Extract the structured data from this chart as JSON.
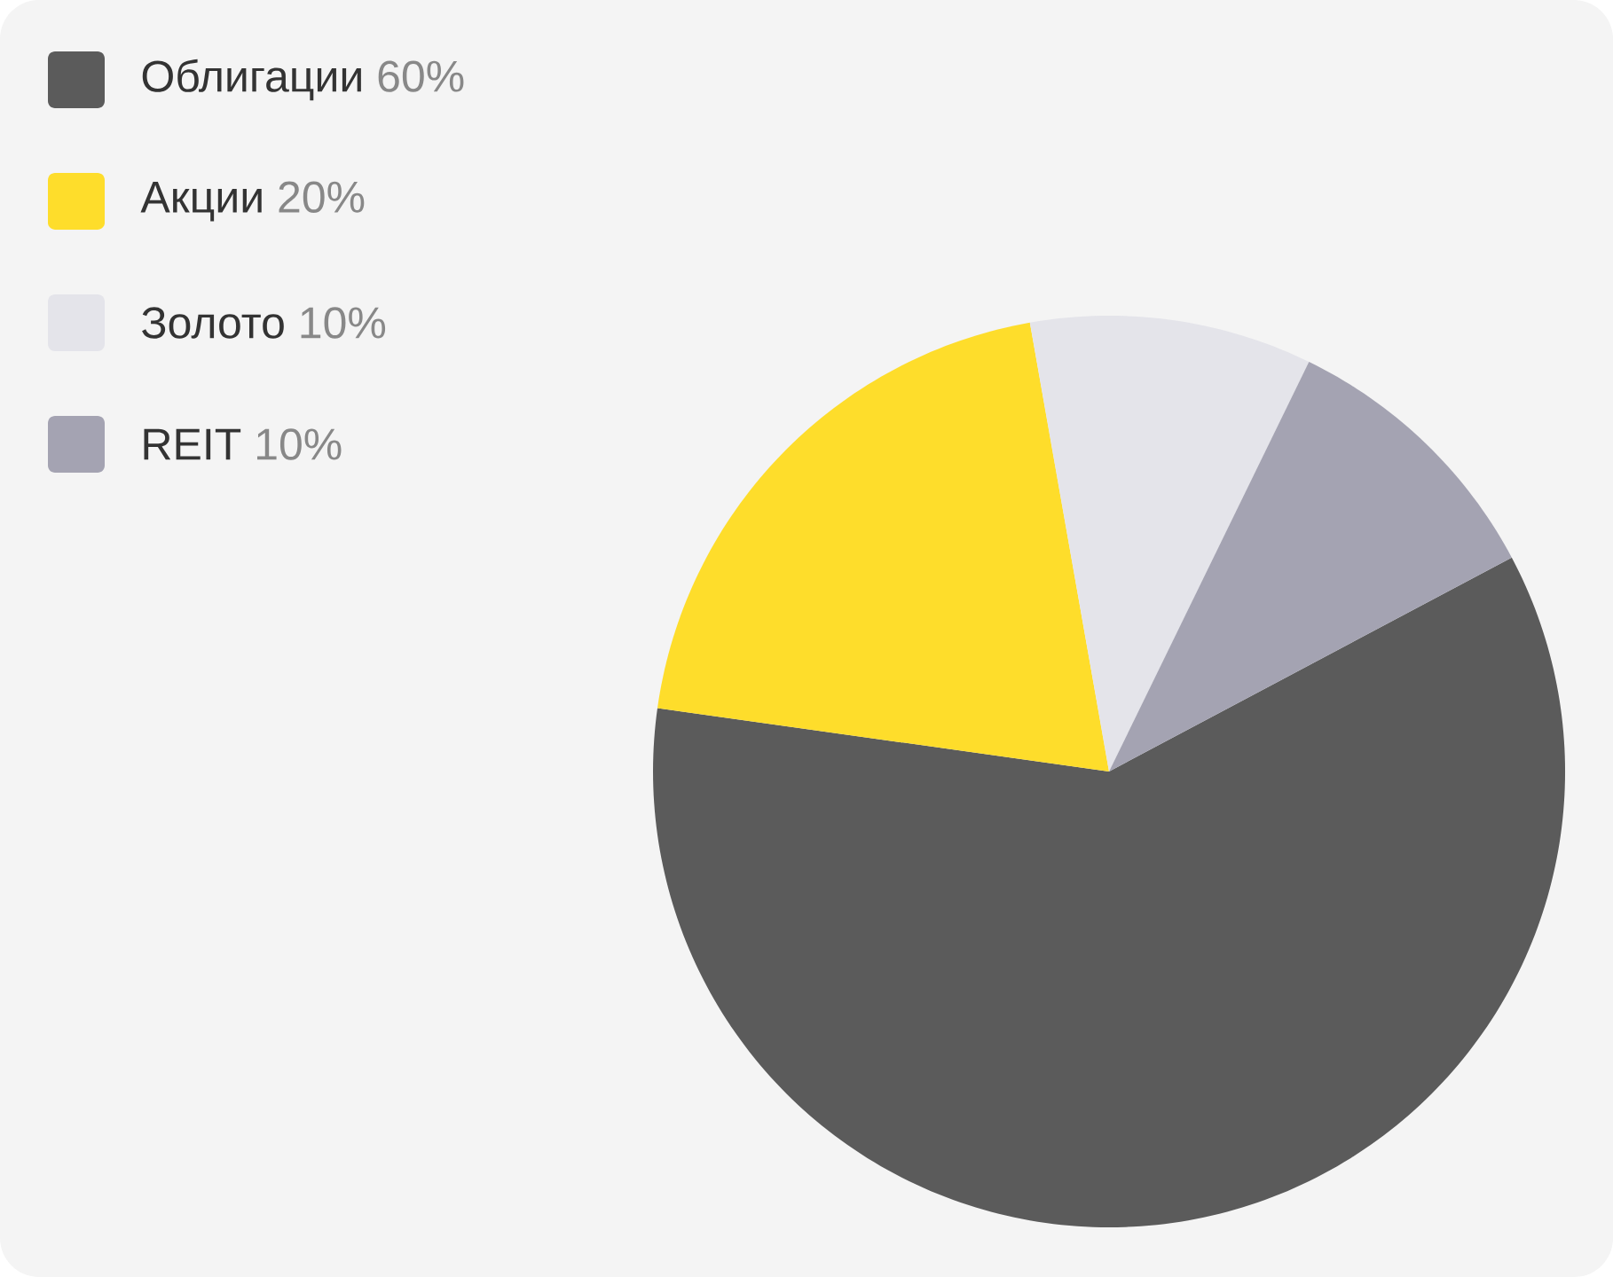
{
  "chart_data": {
    "type": "pie",
    "categories": [
      "Облигации",
      "Акции",
      "Золото",
      "REIT"
    ],
    "values": [
      60,
      20,
      10,
      10
    ],
    "value_labels": [
      "60%",
      "20%",
      "10%",
      "10%"
    ],
    "colors": [
      "#5b5b5b",
      "#fedd2b",
      "#e4e4ea",
      "#a4a3b2"
    ],
    "legend": "top left"
  }
}
